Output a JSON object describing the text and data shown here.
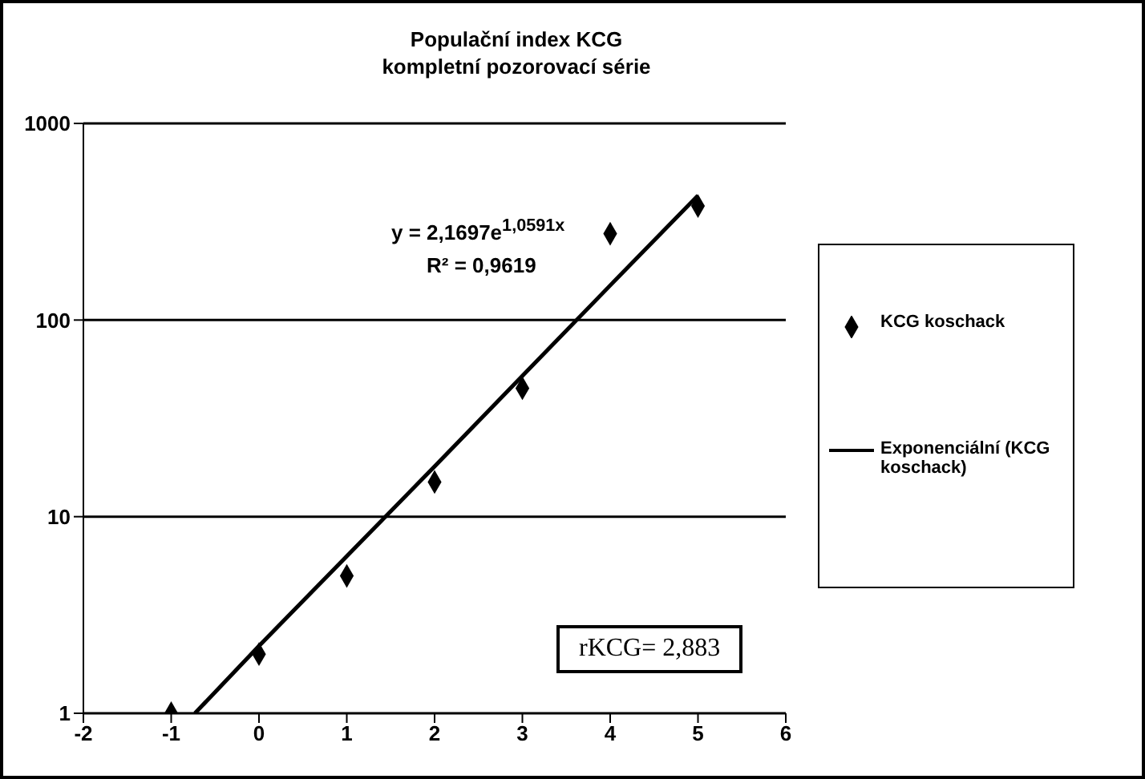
{
  "chart_data": {
    "type": "scatter",
    "title": "Populační index KCG\nkompletní pozorovací série",
    "series": [
      {
        "name": "KCG koschack",
        "color": "#000000",
        "marker": "diamond",
        "x": [
          -1,
          0,
          1,
          2,
          3,
          4,
          5
        ],
        "values": [
          1,
          2,
          5,
          15,
          45,
          275,
          380
        ]
      },
      {
        "name": "Exponenciální (KCG koschack)",
        "type": "line",
        "color": "#000000",
        "marker": "none",
        "line_style": "solid",
        "x": [
          -0.73,
          0,
          1,
          2,
          3,
          4,
          5
        ],
        "values": [
          1,
          2.2,
          6.3,
          18,
          52,
          150,
          430
        ]
      }
    ],
    "log": "y",
    "xlim": [
      -2,
      6
    ],
    "xticks": [
      -2,
      -1,
      0,
      1,
      2,
      3,
      4,
      5,
      6
    ],
    "ylim": [
      1,
      1000
    ],
    "yticks": [
      1,
      10,
      100,
      1000
    ],
    "grid": "y",
    "legend": "right",
    "annotations": [
      "y = 2,1697e$^{1,0591x}$",
      "R² = 0,9619",
      "rKCG= 2,883"
    ]
  }
}
